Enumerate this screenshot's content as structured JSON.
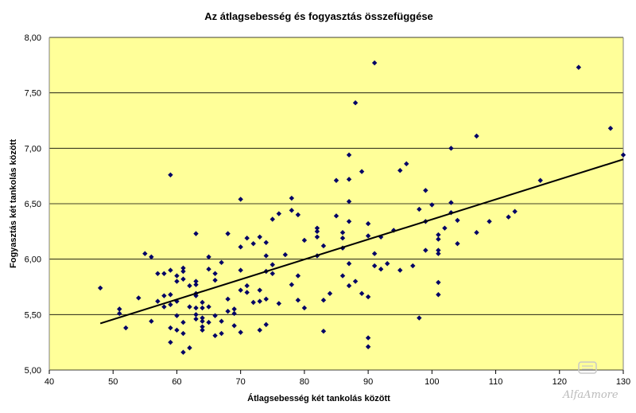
{
  "chart_data": {
    "type": "scatter",
    "title": "Az átlagsebesség és fogyasztás összefüggése",
    "xlabel": "Átlagsebesség két tankolás között",
    "ylabel": "Fogyasztás két tankolás között",
    "xlim": [
      40,
      130
    ],
    "ylim": [
      5.0,
      8.0
    ],
    "xticks": [
      "40",
      "50",
      "60",
      "70",
      "80",
      "90",
      "100",
      "110",
      "120",
      "130"
    ],
    "yticks": [
      "5,00",
      "5,50",
      "6,00",
      "6,50",
      "7,00",
      "7,50",
      "8,00"
    ],
    "grid": "horizontal",
    "legend": "none",
    "colors": {
      "plot_background": "#ffff99",
      "marker": "#000066",
      "trendline": "#000000",
      "gridline": "#000000"
    },
    "trendline": {
      "x": [
        48,
        130
      ],
      "y": [
        5.42,
        6.9
      ]
    },
    "points": [
      [
        48,
        5.74
      ],
      [
        51,
        5.55
      ],
      [
        51,
        5.51
      ],
      [
        52,
        5.38
      ],
      [
        54,
        5.65
      ],
      [
        55,
        6.05
      ],
      [
        56,
        6.02
      ],
      [
        56,
        5.44
      ],
      [
        57,
        5.87
      ],
      [
        57,
        5.62
      ],
      [
        58,
        5.87
      ],
      [
        58,
        5.67
      ],
      [
        58,
        5.57
      ],
      [
        59,
        6.76
      ],
      [
        59,
        5.9
      ],
      [
        59,
        5.68
      ],
      [
        59,
        5.59
      ],
      [
        59,
        5.38
      ],
      [
        59,
        5.25
      ],
      [
        60,
        5.8
      ],
      [
        60,
        5.62
      ],
      [
        60,
        5.49
      ],
      [
        60,
        5.36
      ],
      [
        60,
        5.85
      ],
      [
        61,
        5.92
      ],
      [
        61,
        5.89
      ],
      [
        61,
        5.82
      ],
      [
        61,
        5.43
      ],
      [
        61,
        5.33
      ],
      [
        61,
        5.16
      ],
      [
        62,
        5.76
      ],
      [
        62,
        5.57
      ],
      [
        62,
        5.2
      ],
      [
        63,
        6.23
      ],
      [
        63,
        5.8
      ],
      [
        63,
        5.77
      ],
      [
        63,
        5.69
      ],
      [
        63,
        5.67
      ],
      [
        63,
        5.56
      ],
      [
        63,
        5.5
      ],
      [
        63,
        5.46
      ],
      [
        64,
        5.61
      ],
      [
        64,
        5.56
      ],
      [
        64,
        5.47
      ],
      [
        64,
        5.44
      ],
      [
        64,
        5.39
      ],
      [
        64,
        5.36
      ],
      [
        65,
        6.02
      ],
      [
        65,
        5.91
      ],
      [
        65,
        5.57
      ],
      [
        65,
        5.43
      ],
      [
        66,
        5.87
      ],
      [
        66,
        5.81
      ],
      [
        66,
        5.49
      ],
      [
        66,
        5.31
      ],
      [
        67,
        5.97
      ],
      [
        67,
        5.44
      ],
      [
        67,
        5.33
      ],
      [
        68,
        6.23
      ],
      [
        68,
        5.64
      ],
      [
        68,
        5.53
      ],
      [
        69,
        5.55
      ],
      [
        69,
        5.51
      ],
      [
        69,
        5.4
      ],
      [
        70,
        6.54
      ],
      [
        70,
        6.11
      ],
      [
        70,
        5.9
      ],
      [
        70,
        5.72
      ],
      [
        70,
        5.34
      ],
      [
        71,
        6.19
      ],
      [
        71,
        5.76
      ],
      [
        71,
        5.7
      ],
      [
        72,
        6.14
      ],
      [
        72,
        5.61
      ],
      [
        73,
        6.2
      ],
      [
        73,
        5.72
      ],
      [
        73,
        5.62
      ],
      [
        73,
        5.36
      ],
      [
        74,
        6.15
      ],
      [
        74,
        6.03
      ],
      [
        74,
        5.89
      ],
      [
        74,
        5.64
      ],
      [
        74,
        5.41
      ],
      [
        75,
        6.36
      ],
      [
        75,
        5.95
      ],
      [
        75,
        5.87
      ],
      [
        76,
        6.41
      ],
      [
        76,
        5.6
      ],
      [
        77,
        6.04
      ],
      [
        78,
        6.55
      ],
      [
        78,
        6.44
      ],
      [
        78,
        5.77
      ],
      [
        79,
        6.4
      ],
      [
        79,
        5.85
      ],
      [
        79,
        5.63
      ],
      [
        80,
        6.17
      ],
      [
        80,
        5.56
      ],
      [
        82,
        6.28
      ],
      [
        82,
        6.25
      ],
      [
        82,
        6.2
      ],
      [
        82,
        6.03
      ],
      [
        83,
        5.35
      ],
      [
        83,
        6.12
      ],
      [
        83,
        5.63
      ],
      [
        84,
        5.69
      ],
      [
        85,
        6.71
      ],
      [
        85,
        6.39
      ],
      [
        86,
        6.24
      ],
      [
        86,
        6.19
      ],
      [
        86,
        6.1
      ],
      [
        86,
        5.85
      ],
      [
        87,
        6.94
      ],
      [
        87,
        6.72
      ],
      [
        87,
        6.52
      ],
      [
        87,
        6.34
      ],
      [
        87,
        5.96
      ],
      [
        87,
        5.76
      ],
      [
        88,
        7.41
      ],
      [
        88,
        5.8
      ],
      [
        89,
        6.79
      ],
      [
        89,
        5.69
      ],
      [
        90,
        6.32
      ],
      [
        90,
        6.21
      ],
      [
        90,
        5.66
      ],
      [
        90,
        5.29
      ],
      [
        90,
        5.21
      ],
      [
        91,
        7.77
      ],
      [
        91,
        6.05
      ],
      [
        91,
        5.94
      ],
      [
        92,
        6.2
      ],
      [
        92,
        5.91
      ],
      [
        93,
        5.96
      ],
      [
        94,
        6.26
      ],
      [
        95,
        6.8
      ],
      [
        95,
        5.9
      ],
      [
        96,
        6.86
      ],
      [
        97,
        5.94
      ],
      [
        98,
        6.45
      ],
      [
        98,
        5.47
      ],
      [
        99,
        6.62
      ],
      [
        99,
        6.34
      ],
      [
        99,
        6.08
      ],
      [
        100,
        6.49
      ],
      [
        101,
        6.22
      ],
      [
        101,
        6.18
      ],
      [
        101,
        6.08
      ],
      [
        101,
        6.05
      ],
      [
        101,
        5.79
      ],
      [
        101,
        5.68
      ],
      [
        102,
        6.28
      ],
      [
        103,
        7.0
      ],
      [
        103,
        6.51
      ],
      [
        103,
        6.42
      ],
      [
        104,
        6.35
      ],
      [
        104,
        6.14
      ],
      [
        107,
        7.11
      ],
      [
        107,
        6.24
      ],
      [
        109,
        6.34
      ],
      [
        112,
        6.38
      ],
      [
        113,
        6.43
      ],
      [
        117,
        6.71
      ],
      [
        123,
        7.73
      ],
      [
        128,
        7.18
      ],
      [
        130,
        6.94
      ]
    ]
  },
  "watermark": {
    "text": "AlfaAmore",
    "icon": "car-logo-icon"
  }
}
